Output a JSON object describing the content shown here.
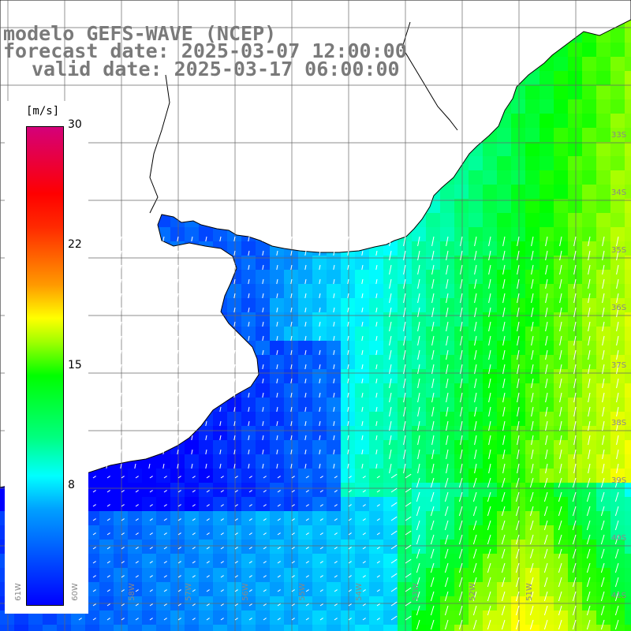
{
  "title": {
    "line1": "modelo GEFS-WAVE (NCEP)",
    "line2": "forecast date: 2025-03-07 12:00:00",
    "line3": "valid date: 2025-03-17 06:00:00"
  },
  "colorbar": {
    "unit": "[m/s]",
    "ticks": [
      "30",
      "22",
      "15",
      "8"
    ],
    "colors": [
      "#0000ff",
      "#00a0ff",
      "#00ffff",
      "#00ff80",
      "#00ff00",
      "#ffff00",
      "#ff0000",
      "#d4007a"
    ]
  },
  "lat_labels": [
    "33S",
    "34S",
    "35S",
    "36S",
    "37S",
    "38S",
    "39S",
    "40S",
    "41S"
  ],
  "lon_labels": [
    "61W",
    "60W",
    "58W",
    "57W",
    "56W",
    "55W",
    "54W",
    "53W",
    "52W",
    "51W"
  ],
  "field": {
    "description_variable": "wind speed",
    "land_color": "#ffffff",
    "grid_color": "#666666"
  }
}
